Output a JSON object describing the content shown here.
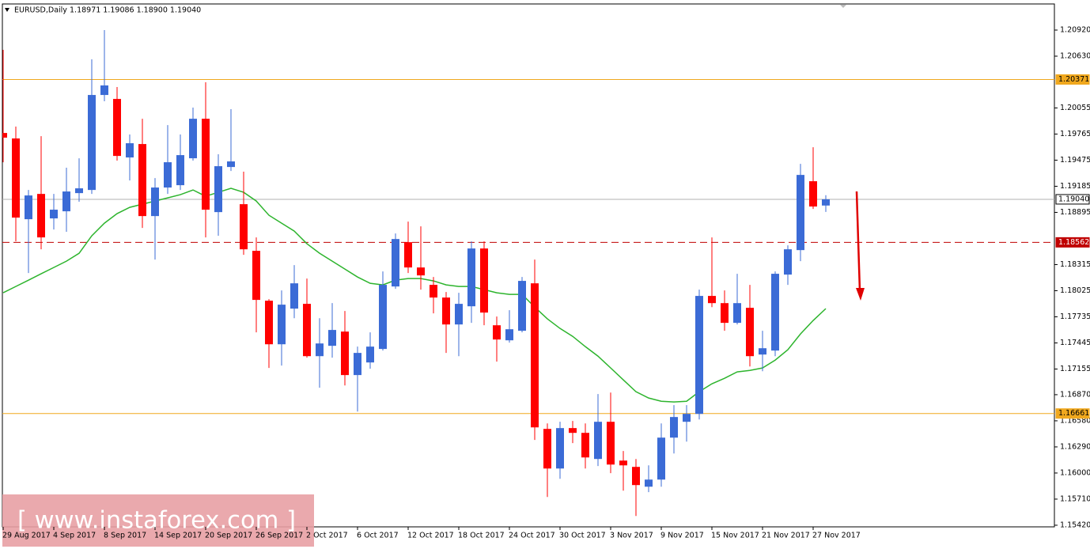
{
  "chart_data": {
    "type": "candlestick",
    "header": {
      "symbol": "EURUSD,Daily",
      "ohlc": "1.18971 1.19086 1.18900 1.19040"
    },
    "categories": [
      "29 Aug 2017",
      null,
      null,
      null,
      "4 Sep 2017",
      null,
      null,
      null,
      "8 Sep 2017",
      null,
      null,
      null,
      "14 Sep 2017",
      null,
      null,
      null,
      "20 Sep 2017",
      null,
      null,
      null,
      "26 Sep 2017",
      null,
      null,
      null,
      "2 Oct 2017",
      null,
      null,
      null,
      "6 Oct 2017",
      null,
      null,
      null,
      "12 Oct 2017",
      null,
      null,
      null,
      "18 Oct 2017",
      null,
      null,
      null,
      "24 Oct 2017",
      null,
      null,
      null,
      "30 Oct 2017",
      null,
      null,
      null,
      "3 Nov 2017",
      null,
      null,
      null,
      "9 Nov 2017",
      null,
      null,
      null,
      "15 Nov 2017",
      null,
      null,
      null,
      "21 Nov 2017",
      null,
      null,
      null,
      "27 Nov 2017",
      null
    ],
    "open": [
      1.19777,
      1.19716,
      1.18819,
      1.191,
      1.18828,
      1.18907,
      1.19109,
      1.19144,
      1.20199,
      1.20155,
      1.19505,
      1.19654,
      1.18854,
      1.19171,
      1.19197,
      1.19496,
      1.19935,
      1.18898,
      1.19399,
      1.18986,
      1.18468,
      1.17914,
      1.1743,
      1.17826,
      1.17879,
      1.17298,
      1.17413,
      1.17571,
      1.17088,
      1.17228,
      1.17378,
      1.18072,
      1.18564,
      1.18283,
      1.1809,
      1.17949,
      1.1765,
      1.17852,
      1.18494,
      1.17641,
      1.17474,
      1.1758,
      1.18107,
      1.1649,
      1.1605,
      1.16499,
      1.16446,
      1.16156,
      1.16569,
      1.16138,
      1.16068,
      1.15848,
      1.15927,
      1.16393,
      1.16569,
      1.16657,
      1.17967,
      1.17887,
      1.17668,
      1.17835,
      1.17316,
      1.1736,
      1.18204,
      1.18476,
      1.19241,
      1.18971
    ],
    "high": [
      1.207,
      1.19848,
      1.19144,
      1.19742,
      1.191,
      1.19391,
      1.19496,
      1.20595,
      1.2092,
      1.20287,
      1.1976,
      1.19935,
      1.19276,
      1.19865,
      1.1976,
      1.20059,
      1.2034,
      1.1954,
      1.20041,
      1.19347,
      1.18617,
      1.17931,
      1.18028,
      1.18309,
      1.1816,
      1.1772,
      1.17887,
      1.178,
      1.17404,
      1.17562,
      1.18239,
      1.18661,
      1.18793,
      1.1874,
      1.18177,
      1.1801,
      1.18002,
      1.18573,
      1.18573,
      1.17738,
      1.17808,
      1.18177,
      1.18371,
      1.16551,
      1.16569,
      1.16578,
      1.16551,
      1.16877,
      1.16894,
      1.16244,
      1.16156,
      1.16085,
      1.16551,
      1.16754,
      1.16754,
      1.18037,
      1.18617,
      1.18028,
      1.18213,
      1.1809,
      1.1758,
      1.18239,
      1.18529,
      1.19434,
      1.19619,
      1.19086
    ],
    "low": [
      1.19452,
      1.18573,
      1.18221,
      1.18485,
      1.18705,
      1.18679,
      1.19013,
      1.191,
      1.20129,
      1.1947,
      1.1925,
      1.18722,
      1.18371,
      1.191,
      1.19144,
      1.1947,
      1.18617,
      1.18635,
      1.19355,
      1.18424,
      1.17562,
      1.17167,
      1.17193,
      1.1772,
      1.17281,
      1.16947,
      1.17281,
      1.16973,
      1.16683,
      1.17158,
      1.1736,
      1.18046,
      1.18221,
      1.18037,
      1.17773,
      1.17334,
      1.17298,
      1.17668,
      1.17641,
      1.17237,
      1.17448,
      1.17562,
      1.16367,
      1.15734,
      1.15936,
      1.16332,
      1.1605,
      1.16077,
      1.15998,
      1.15804,
      1.15523,
      1.15787,
      1.15848,
      1.16217,
      1.16349,
      1.16595,
      1.17843,
      1.1758,
      1.1765,
      1.17184,
      1.17131,
      1.17298,
      1.1809,
      1.18353,
      1.18933,
      1.189
    ],
    "close": [
      1.19725,
      1.18837,
      1.19083,
      1.18617,
      1.18925,
      1.19127,
      1.19162,
      1.20199,
      1.20305,
      1.19522,
      1.19663,
      1.18854,
      1.19171,
      1.19452,
      1.19531,
      1.19935,
      1.18925,
      1.19408,
      1.19461,
      1.18485,
      1.17923,
      1.1743,
      1.1787,
      1.18107,
      1.17298,
      1.17439,
      1.17589,
      1.17088,
      1.17334,
      1.17404,
      1.1809,
      1.18599,
      1.18283,
      1.18195,
      1.17949,
      1.1765,
      1.17879,
      1.18494,
      1.17782,
      1.17483,
      1.17597,
      1.18134,
      1.16507,
      1.1605,
      1.16499,
      1.16446,
      1.16173,
      1.16569,
      1.16094,
      1.16085,
      1.15866,
      1.15927,
      1.16393,
      1.16622,
      1.16657,
      1.17967,
      1.17887,
      1.17668,
      1.17887,
      1.17298,
      1.17386,
      1.18213,
      1.18485,
      1.19311,
      1.1896,
      1.1904
    ],
    "up_color": "#3b6bd6",
    "down_color": "#ff0000",
    "moving_average": {
      "color": "#2db42d",
      "values": [
        1.18002,
        1.18072,
        1.18142,
        1.18213,
        1.18283,
        1.18353,
        1.18441,
        1.18635,
        1.18775,
        1.18881,
        1.18951,
        1.18986,
        1.19021,
        1.19056,
        1.19092,
        1.19144,
        1.19074,
        1.19118,
        1.19162,
        1.19118,
        1.19021,
        1.18863,
        1.18775,
        1.18687,
        1.18547,
        1.18441,
        1.18353,
        1.18265,
        1.18177,
        1.18107,
        1.1809,
        1.18142,
        1.1816,
        1.1816,
        1.18134,
        1.1809,
        1.18072,
        1.18072,
        1.18037,
        1.18002,
        1.17984,
        1.17984,
        1.17843,
        1.17712,
        1.17606,
        1.17518,
        1.17404,
        1.17298,
        1.17167,
        1.17035,
        1.16903,
        1.16833,
        1.16797,
        1.16789,
        1.16797,
        1.16903,
        1.16991,
        1.17052,
        1.17123,
        1.1714,
        1.17167,
        1.17254,
        1.17369,
        1.17545,
        1.17694,
        1.17826
      ]
    },
    "hlines": [
      {
        "value": 1.20371,
        "color": "#f0a81e",
        "style": "solid"
      },
      {
        "value": 1.1904,
        "label": "1.19040",
        "color": "#b0b0b0",
        "style": "solid"
      },
      {
        "value": 1.18562,
        "color": "#c00000",
        "style": "dashed"
      },
      {
        "value": 1.16661,
        "color": "#f0a81e",
        "style": "solid"
      }
    ],
    "ylim": [
      1.15402,
      1.2121
    ],
    "yticks": [
      {
        "value": 1.2092,
        "label": "1.20920"
      },
      {
        "value": 1.2063,
        "label": "1.20630"
      },
      1.20055,
      1.19765,
      1.19475,
      1.19185,
      1.18895,
      1.18315,
      1.18025,
      1.17735,
      1.17445,
      1.17155,
      {
        "value": 1.1687,
        "label": "1.16870"
      },
      {
        "value": 1.1658,
        "label": "1.16580"
      },
      {
        "value": 1.1629,
        "label": "1.16290"
      },
      {
        "value": 1.16,
        "label": "1.16000"
      },
      {
        "value": 1.1571,
        "label": "1.15710"
      },
      {
        "value": 1.1542,
        "label": "1.15420"
      }
    ],
    "watermark": "[ www.instaforex.com ]"
  }
}
